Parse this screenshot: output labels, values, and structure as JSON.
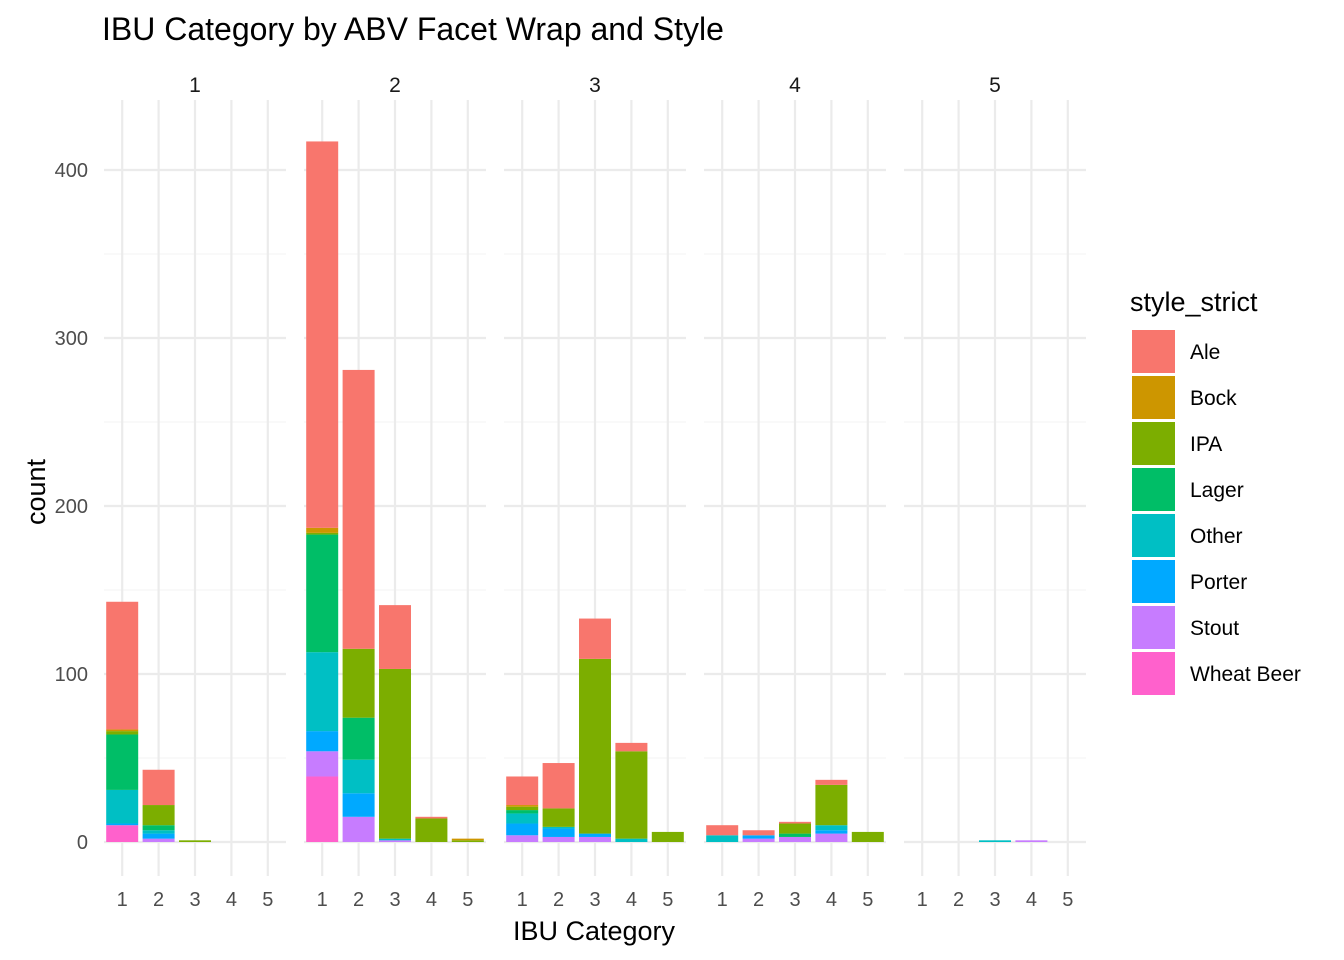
{
  "chart_data": {
    "type": "bar",
    "stacked": true,
    "title": "IBU Category by ABV Facet Wrap and Style",
    "xlabel": "IBU Category",
    "ylabel": "count",
    "ylim": [
      0,
      440
    ],
    "y_ticks": [
      0,
      100,
      200,
      300,
      400
    ],
    "categories": [
      "1",
      "2",
      "3",
      "4",
      "5"
    ],
    "legend": {
      "title": "style_strict",
      "position": "right",
      "items": [
        {
          "name": "Ale",
          "color": "#F8766D"
        },
        {
          "name": "Bock",
          "color": "#CD9600"
        },
        {
          "name": "IPA",
          "color": "#7CAE00"
        },
        {
          "name": "Lager",
          "color": "#00BE67"
        },
        {
          "name": "Other",
          "color": "#00BFC4"
        },
        {
          "name": "Porter",
          "color": "#00A9FF"
        },
        {
          "name": "Stout",
          "color": "#C77CFF"
        },
        {
          "name": "Wheat Beer",
          "color": "#FF61CC"
        }
      ]
    },
    "stack_order_bottom_to_top": [
      "Wheat Beer",
      "Stout",
      "Porter",
      "Other",
      "Lager",
      "IPA",
      "Bock",
      "Ale"
    ],
    "facets": [
      {
        "label": "1",
        "bars": [
          {
            "category": "1",
            "values": {
              "Wheat Beer": 10,
              "Stout": 0,
              "Porter": 1,
              "Other": 20,
              "Lager": 33,
              "IPA": 2,
              "Bock": 1,
              "Ale": 76
            }
          },
          {
            "category": "2",
            "values": {
              "Wheat Beer": 0,
              "Stout": 2,
              "Porter": 3,
              "Other": 2,
              "Lager": 3,
              "IPA": 12,
              "Bock": 0,
              "Ale": 21
            }
          },
          {
            "category": "3",
            "values": {
              "Wheat Beer": 0,
              "Stout": 0,
              "Porter": 0,
              "Other": 0,
              "Lager": 0,
              "IPA": 1,
              "Bock": 0,
              "Ale": 0
            }
          },
          {
            "category": "4",
            "values": {
              "Wheat Beer": 0,
              "Stout": 0,
              "Porter": 0,
              "Other": 0,
              "Lager": 0,
              "IPA": 0,
              "Bock": 0,
              "Ale": 0
            }
          },
          {
            "category": "5",
            "values": {
              "Wheat Beer": 0,
              "Stout": 0,
              "Porter": 0,
              "Other": 0,
              "Lager": 0,
              "IPA": 0,
              "Bock": 0,
              "Ale": 0
            }
          }
        ]
      },
      {
        "label": "2",
        "bars": [
          {
            "category": "1",
            "values": {
              "Wheat Beer": 39,
              "Stout": 15,
              "Porter": 12,
              "Other": 47,
              "Lager": 70,
              "IPA": 1,
              "Bock": 3,
              "Ale": 230
            }
          },
          {
            "category": "2",
            "values": {
              "Wheat Beer": 0,
              "Stout": 15,
              "Porter": 14,
              "Other": 20,
              "Lager": 25,
              "IPA": 41,
              "Bock": 0,
              "Ale": 166
            }
          },
          {
            "category": "3",
            "values": {
              "Wheat Beer": 0,
              "Stout": 1,
              "Porter": 0,
              "Other": 1,
              "Lager": 0,
              "IPA": 101,
              "Bock": 0,
              "Ale": 38
            }
          },
          {
            "category": "4",
            "values": {
              "Wheat Beer": 0,
              "Stout": 0,
              "Porter": 0,
              "Other": 0,
              "Lager": 0,
              "IPA": 14,
              "Bock": 0,
              "Ale": 1
            }
          },
          {
            "category": "5",
            "values": {
              "Wheat Beer": 0,
              "Stout": 0,
              "Porter": 0,
              "Other": 0,
              "Lager": 0,
              "IPA": 1,
              "Bock": 1,
              "Ale": 0
            }
          }
        ]
      },
      {
        "label": "3",
        "bars": [
          {
            "category": "1",
            "values": {
              "Wheat Beer": 0,
              "Stout": 4,
              "Porter": 7,
              "Other": 6,
              "Lager": 2,
              "IPA": 2,
              "Bock": 1,
              "Ale": 17
            }
          },
          {
            "category": "2",
            "values": {
              "Wheat Beer": 0,
              "Stout": 3,
              "Porter": 5,
              "Other": 1,
              "Lager": 0,
              "IPA": 11,
              "Bock": 0,
              "Ale": 27
            }
          },
          {
            "category": "3",
            "values": {
              "Wheat Beer": 0,
              "Stout": 3,
              "Porter": 2,
              "Other": 0,
              "Lager": 0,
              "IPA": 104,
              "Bock": 0,
              "Ale": 24
            }
          },
          {
            "category": "4",
            "values": {
              "Wheat Beer": 0,
              "Stout": 0,
              "Porter": 0,
              "Other": 2,
              "Lager": 0,
              "IPA": 52,
              "Bock": 0,
              "Ale": 5
            }
          },
          {
            "category": "5",
            "values": {
              "Wheat Beer": 0,
              "Stout": 0,
              "Porter": 0,
              "Other": 0,
              "Lager": 0,
              "IPA": 6,
              "Bock": 0,
              "Ale": 0
            }
          }
        ]
      },
      {
        "label": "4",
        "bars": [
          {
            "category": "1",
            "values": {
              "Wheat Beer": 0,
              "Stout": 0,
              "Porter": 0,
              "Other": 4,
              "Lager": 0,
              "IPA": 0,
              "Bock": 0,
              "Ale": 6
            }
          },
          {
            "category": "2",
            "values": {
              "Wheat Beer": 0,
              "Stout": 2,
              "Porter": 2,
              "Other": 0,
              "Lager": 0,
              "IPA": 0,
              "Bock": 0,
              "Ale": 3
            }
          },
          {
            "category": "3",
            "values": {
              "Wheat Beer": 0,
              "Stout": 3,
              "Porter": 0,
              "Other": 0,
              "Lager": 2,
              "IPA": 6,
              "Bock": 0,
              "Ale": 1
            }
          },
          {
            "category": "4",
            "values": {
              "Wheat Beer": 0,
              "Stout": 5,
              "Porter": 2,
              "Other": 3,
              "Lager": 0,
              "IPA": 24,
              "Bock": 0,
              "Ale": 3
            }
          },
          {
            "category": "5",
            "values": {
              "Wheat Beer": 0,
              "Stout": 0,
              "Porter": 0,
              "Other": 0,
              "Lager": 0,
              "IPA": 6,
              "Bock": 0,
              "Ale": 0
            }
          }
        ]
      },
      {
        "label": "5",
        "bars": [
          {
            "category": "1",
            "values": {
              "Wheat Beer": 0,
              "Stout": 0,
              "Porter": 0,
              "Other": 0,
              "Lager": 0,
              "IPA": 0,
              "Bock": 0,
              "Ale": 0
            }
          },
          {
            "category": "2",
            "values": {
              "Wheat Beer": 0,
              "Stout": 0,
              "Porter": 0,
              "Other": 0,
              "Lager": 0,
              "IPA": 0,
              "Bock": 0,
              "Ale": 0
            }
          },
          {
            "category": "3",
            "values": {
              "Wheat Beer": 0,
              "Stout": 0,
              "Porter": 0,
              "Other": 1,
              "Lager": 0,
              "IPA": 0,
              "Bock": 0,
              "Ale": 0
            }
          },
          {
            "category": "4",
            "values": {
              "Wheat Beer": 0,
              "Stout": 1,
              "Porter": 0,
              "Other": 0,
              "Lager": 0,
              "IPA": 0,
              "Bock": 0,
              "Ale": 0
            }
          },
          {
            "category": "5",
            "values": {
              "Wheat Beer": 0,
              "Stout": 0,
              "Porter": 0,
              "Other": 0,
              "Lager": 0,
              "IPA": 0,
              "Bock": 0,
              "Ale": 0
            }
          }
        ]
      }
    ]
  }
}
